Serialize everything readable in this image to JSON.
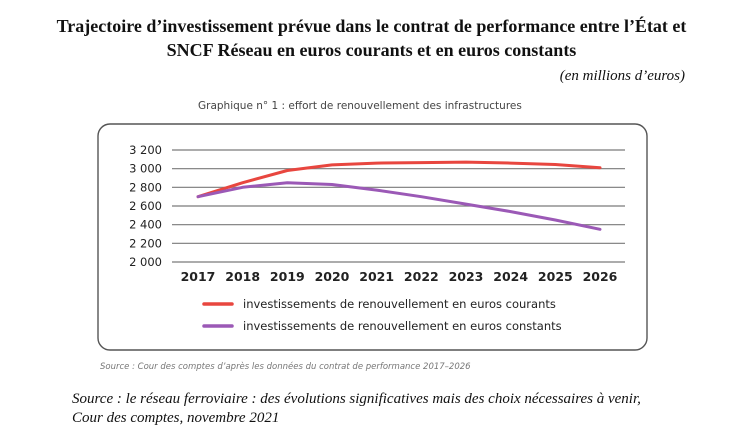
{
  "title_line1": "Trajectoire d’investissement prévue dans le contrat de performance entre l’État et",
  "title_line2": "SNCF Réseau en euros courants et en euros constants",
  "unit_note": "(en millions d’euros)",
  "footer_line1": "Source : le réseau ferroviaire : des évolutions significatives mais des choix nécessaires à venir,",
  "footer_line2": "Cour des comptes, novembre 2021",
  "chart_data": {
    "type": "line",
    "title": "Graphique n° 1 : effort de renouvellement des infrastructures",
    "source": "Source : Cour des comptes d’après les données du contrat de performance 2017–2026",
    "categories": [
      "2017",
      "2018",
      "2019",
      "2020",
      "2021",
      "2022",
      "2023",
      "2024",
      "2025",
      "2026"
    ],
    "ylim": [
      2000,
      3200
    ],
    "yticks": [
      2000,
      2200,
      2400,
      2600,
      2800,
      3000,
      3200
    ],
    "ytick_labels": [
      "2 000",
      "2 200",
      "2 400",
      "2 600",
      "2 800",
      "3 000",
      "3 200"
    ],
    "grid": true,
    "legend_position": "bottom",
    "series": [
      {
        "name": "investissements de renouvellement en euros courants",
        "color": "#e8463f",
        "values": [
          2700,
          2850,
          2980,
          3040,
          3060,
          3065,
          3070,
          3060,
          3045,
          3010
        ]
      },
      {
        "name": "investissements de renouvellement en euros constants",
        "color": "#9b59b6",
        "values": [
          2700,
          2800,
          2850,
          2830,
          2770,
          2700,
          2620,
          2540,
          2450,
          2350
        ]
      }
    ]
  }
}
